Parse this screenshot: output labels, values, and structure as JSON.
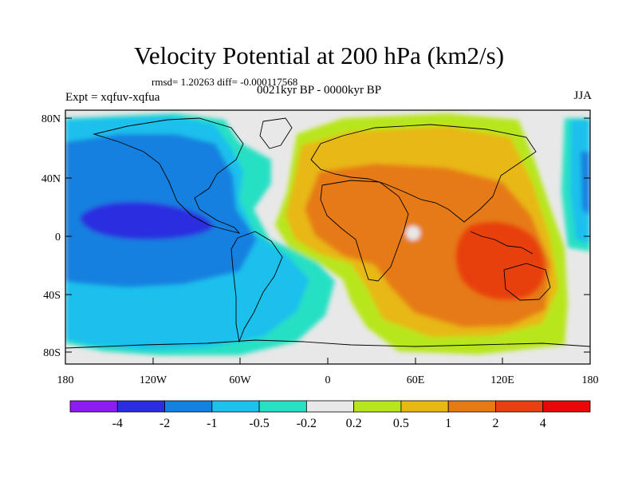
{
  "title": "Velocity Potential at 200 hPa (km2/s)",
  "stats": "rmsd= 1.20263 diff= -0.000117568",
  "experiment": "Expt = xqfuv-xqfua",
  "period": "0021kyr BP - 0000kyr BP",
  "season": "JJA",
  "y_ticks": [
    "80N",
    "40N",
    "0",
    "40S",
    "80S"
  ],
  "x_ticks": [
    "180",
    "120W",
    "60W",
    "0",
    "60E",
    "120E",
    "180"
  ],
  "colorbar": {
    "colors": [
      "#8c1cf0",
      "#2a2ee0",
      "#1480e0",
      "#1ec0ec",
      "#28e0c4",
      "#e8e8e8",
      "#b8e61e",
      "#e8b814",
      "#e67a14",
      "#e84010",
      "#e80808"
    ],
    "labels": [
      "-4",
      "-2",
      "-1",
      "-0.5",
      "-0.2",
      "0.2",
      "0.5",
      "1",
      "2",
      "4"
    ]
  }
}
